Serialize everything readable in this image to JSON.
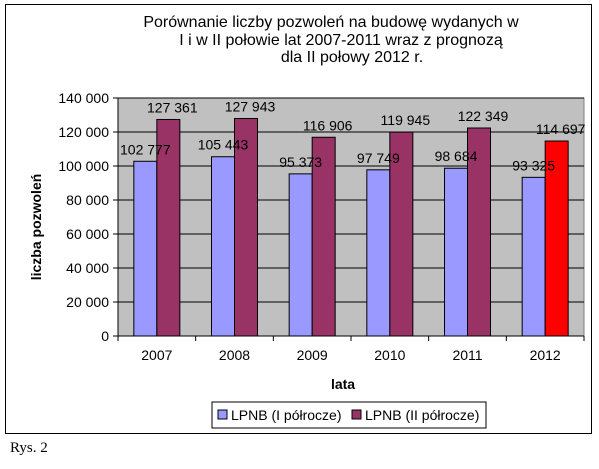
{
  "chart_data": {
    "type": "bar",
    "title_lines": [
      "Porównanie liczby pozwoleń na budowę wydanych w",
      "I i w II połowie lat 2007-2011  wraz z prognozą",
      "dla II połowy 2012 r."
    ],
    "xlabel": "lata",
    "ylabel": "liczba pozwoleń",
    "categories": [
      "2007",
      "2008",
      "2009",
      "2010",
      "2011",
      "2012"
    ],
    "series": [
      {
        "name": "LPNB (I półrocze)",
        "values": [
          102777,
          105443,
          95373,
          97749,
          98684,
          93325
        ],
        "labels": [
          "102 777",
          "105 443",
          "95 373",
          "97 749",
          "98 684",
          "93 325"
        ],
        "color": "#9999ff"
      },
      {
        "name": "LPNB (II półrocze)",
        "values": [
          127361,
          127943,
          116906,
          119945,
          122349,
          114697
        ],
        "labels": [
          "127 361",
          "127 943",
          "116 906",
          "119 945",
          "122 349",
          "114 697"
        ],
        "color": "#993366",
        "highlight_color": "#ff0000",
        "highlight_category": "2012"
      }
    ],
    "ylim": [
      0,
      140000
    ],
    "yticks": [
      0,
      20000,
      40000,
      60000,
      80000,
      100000,
      120000,
      140000
    ],
    "ytick_labels": [
      "0",
      "20 000",
      "40 000",
      "60 000",
      "80 000",
      "100 000",
      "120 000",
      "140 000"
    ],
    "grid": true,
    "plot_background": "#c0c0c0",
    "legend_position": "bottom"
  },
  "caption": "Rys. 2"
}
